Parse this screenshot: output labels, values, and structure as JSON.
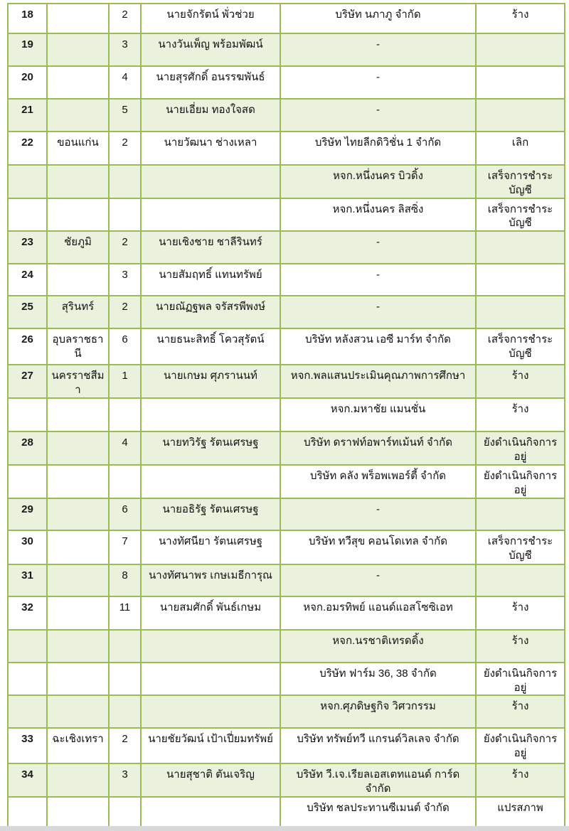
{
  "colors": {
    "border_green": "#9bbb59",
    "row_shade_green": "#eaf1dd",
    "text": "#111111",
    "page_edge_gray": "#d8d8d8"
  },
  "statuses_seen": [
    "ร้าง",
    "เลิก",
    "เสร็จการชำระบัญชี",
    "ยังดำเนินกิจการอยู่",
    "แปรสภาพ"
  ],
  "table": {
    "rows": [
      {
        "no": "18",
        "province": "",
        "count": "2",
        "name": "นายจักรัตน์ พั่วช่วย",
        "company": "บริษัท นภาภู จำกัด",
        "status": "ร้าง"
      },
      {
        "no": "19",
        "province": "",
        "count": "3",
        "name": "นางวันเพ็ญ พร้อมพัฒน์",
        "company": "-",
        "status": ""
      },
      {
        "no": "20",
        "province": "",
        "count": "4",
        "name": "นายสุรศักดิ์ อนรรฆพันธ์",
        "company": "-",
        "status": ""
      },
      {
        "no": "21",
        "province": "",
        "count": "5",
        "name": "นายเอี่ยม ทองใจสด",
        "company": "-",
        "status": ""
      },
      {
        "no": "22",
        "province": "ขอนแก่น",
        "count": "2",
        "name": "นายวัฒนา ช่างเหลา",
        "company": "บริษัท ไทยลีกดิวิชั่น 1 จำกัด",
        "status": "เลิก"
      },
      {
        "no": "",
        "province": "",
        "count": "",
        "name": "",
        "company": "หจก.หนึ่งนคร บิวดิ้ง",
        "status": "เสร็จการชำระบัญชี"
      },
      {
        "no": "",
        "province": "",
        "count": "",
        "name": "",
        "company": "หจก.หนึ่งนคร ลิสซิ่ง",
        "status": "เสร็จการชำระบัญชี"
      },
      {
        "no": "23",
        "province": "ชัยภูมิ",
        "count": "2",
        "name": "นายเชิงชาย ชาลีรินทร์",
        "company": "-",
        "status": ""
      },
      {
        "no": "24",
        "province": "",
        "count": "3",
        "name": "นายสัมฤทธิ์ แทนทรัพย์",
        "company": "-",
        "status": ""
      },
      {
        "no": "25",
        "province": "สุรินทร์",
        "count": "2",
        "name": "นายณัฏฐพล จรัสรพีพงษ์",
        "company": "-",
        "status": ""
      },
      {
        "no": "26",
        "province": "อุบลราชธานี",
        "count": "6",
        "name": "นายธนะสิทธิ์ โควสุรัตน์",
        "company": "บริษัท หลังสวน เอซี มาร์ท จำกัด",
        "status": "เสร็จการชำระบัญชี"
      },
      {
        "no": "27",
        "province": "นครราชสีมา",
        "count": "1",
        "name": "นายเกษม ศุภรานนท์",
        "company": "หจก.พลแสนประเมินคุณภาพการศึกษา",
        "status": "ร้าง"
      },
      {
        "no": "",
        "province": "",
        "count": "",
        "name": "",
        "company": "หจก.มหาชัย แมนชั่น",
        "status": "ร้าง"
      },
      {
        "no": "28",
        "province": "",
        "count": "4",
        "name": "นายทวิรัฐ รัตนเศรษฐ",
        "company": "บริษัท ดราฟท์อพาร์ทเม้นท์ จำกัด",
        "status": "ยังดำเนินกิจการอยู่"
      },
      {
        "no": "",
        "province": "",
        "count": "",
        "name": "",
        "company": "บริษัท คลัง พร็อพเพอร์ตี้ จำกัด",
        "status": "ยังดำเนินกิจการอยู่"
      },
      {
        "no": "29",
        "province": "",
        "count": "6",
        "name": "นายอธิรัฐ รัตนเศรษฐ",
        "company": "-",
        "status": ""
      },
      {
        "no": "30",
        "province": "",
        "count": "7",
        "name": "นางทัศนียา รัตนเศรษฐ",
        "company": "บริษัท ทวีสุข คอนโดเทล จำกัด",
        "status": "เสร็จการชำระบัญชี"
      },
      {
        "no": "31",
        "province": "",
        "count": "8",
        "name": "นางทัศนาพร เกษเมธีการุณ",
        "company": "-",
        "status": ""
      },
      {
        "no": "32",
        "province": "",
        "count": "11",
        "name": "นายสมศักดิ์ พันธ์เกษม",
        "company": "หจก.อมรทิพย์ แอนด์แอสโซซิเอท",
        "status": "ร้าง"
      },
      {
        "no": "",
        "province": "",
        "count": "",
        "name": "",
        "company": "หจก.นรชาติเทรดดิ้ง",
        "status": "ร้าง"
      },
      {
        "no": "",
        "province": "",
        "count": "",
        "name": "",
        "company": "บริษัท ฟาร์ม 36, 38 จำกัด",
        "status": "ยังดำเนินกิจการอยู่"
      },
      {
        "no": "",
        "province": "",
        "count": "",
        "name": "",
        "company": "หจก.ศุภดิษฐกิจ วิศวกรรม",
        "status": "ร้าง"
      },
      {
        "no": "33",
        "province": "ฉะเชิงเทรา",
        "count": "2",
        "name": "นายชัยวัฒน์ เป้าเปี่ยมทรัพย์",
        "company": "บริษัท ทรัพย์ทวี แกรนด์วิลเลจ จำกัด",
        "status": "ยังดำเนินกิจการอยู่"
      },
      {
        "no": "34",
        "province": "",
        "count": "3",
        "name": "นายสุชาติ ตันเจริญ",
        "company": "บริษัท วี.เจ.เรียลเอสเตทแอนด์ การ์ด จำกัด",
        "status": "ร้าง"
      },
      {
        "no": "",
        "province": "",
        "count": "",
        "name": "",
        "company": "บริษัท ชลประทานซีเมนต์ จำกัด",
        "status": "แปรสภาพ"
      }
    ]
  }
}
